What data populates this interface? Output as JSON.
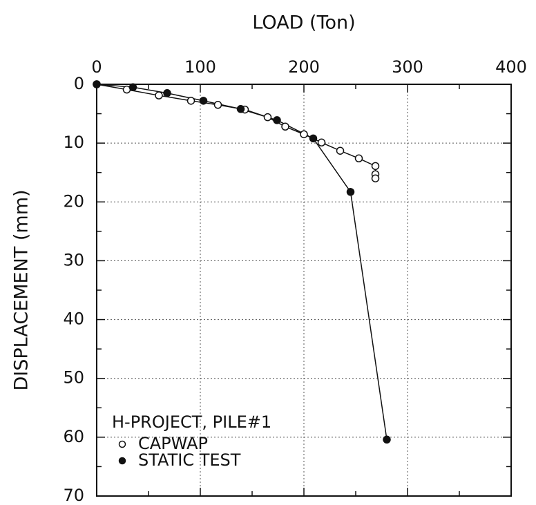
{
  "chart_data": {
    "type": "line",
    "xlabel": "LOAD (Ton)",
    "ylabel": "DISPLACEMENT (mm)",
    "xlim": [
      0,
      400
    ],
    "xticks": [
      0,
      100,
      200,
      300,
      400
    ],
    "xminor_ticks": [
      50,
      150,
      250,
      350
    ],
    "ylim": [
      0,
      70
    ],
    "yticks": [
      0,
      10,
      20,
      30,
      40,
      50,
      60,
      70
    ],
    "yminor_ticks": [
      5,
      15,
      25,
      35,
      45,
      55,
      65
    ],
    "y_inverted": true,
    "x_axis_position": "top",
    "grid": true,
    "legend_title": "H-PROJECT, PILE#1",
    "legend_position": "lower left",
    "series": [
      {
        "name": "CAPWAP",
        "color": "#111111",
        "marker": "open",
        "x": [
          0,
          29,
          60,
          91,
          117,
          143,
          165,
          182,
          200,
          217,
          235,
          253,
          269,
          269,
          269
        ],
        "values": [
          0,
          0.9,
          1.9,
          2.8,
          3.5,
          4.3,
          5.6,
          7.2,
          8.5,
          9.9,
          11.3,
          12.6,
          13.9,
          15.3,
          16.0
        ]
      },
      {
        "name": "STATIC TEST",
        "color": "#111111",
        "marker": "filled",
        "x": [
          0,
          35,
          68,
          103,
          139,
          174,
          209,
          245,
          280
        ],
        "values": [
          0,
          0.5,
          1.5,
          2.8,
          4.2,
          6.1,
          9.2,
          18.3,
          60.4
        ]
      }
    ]
  }
}
